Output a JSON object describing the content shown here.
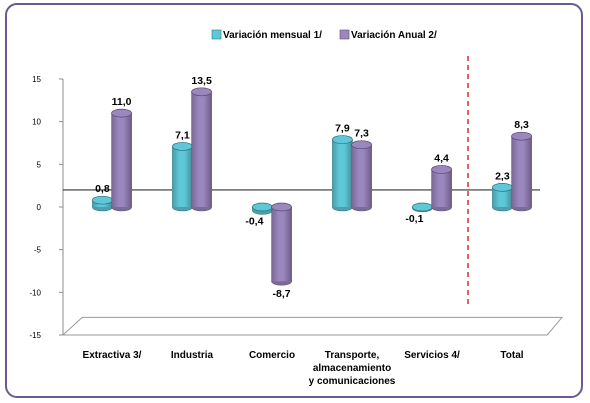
{
  "chart_data": {
    "type": "bar",
    "categories": [
      [
        "Extractiva  3/"
      ],
      [
        "Industria"
      ],
      [
        "Comercio"
      ],
      [
        "Transporte,",
        "almacenamiento",
        "y comunicaciones"
      ],
      [
        "Servicios 4/"
      ],
      [
        "Total"
      ]
    ],
    "series": [
      {
        "name": "Variación mensual 1/",
        "values": [
          0.8,
          7.1,
          -0.4,
          7.9,
          -0.1,
          2.3
        ],
        "labels": [
          "0,8",
          "7,1",
          "-0,4",
          "7,9",
          "-0,1",
          "2,3"
        ],
        "color": "#5ec8d8"
      },
      {
        "name": "Variación Anual  2/",
        "values": [
          11.0,
          13.5,
          -8.7,
          7.3,
          4.4,
          8.3
        ],
        "labels": [
          "11,0",
          "13,5",
          "-8,7",
          "7,3",
          "4,4",
          "8,3"
        ],
        "color": "#9b86be"
      }
    ],
    "yticks": [
      15,
      10,
      5,
      0,
      -5,
      -10,
      -15
    ],
    "ylim": [
      -15,
      15
    ],
    "legend_position": "top",
    "reference_line_value": 2,
    "separator": "dashed red line between Servicios 4/ and Total"
  }
}
